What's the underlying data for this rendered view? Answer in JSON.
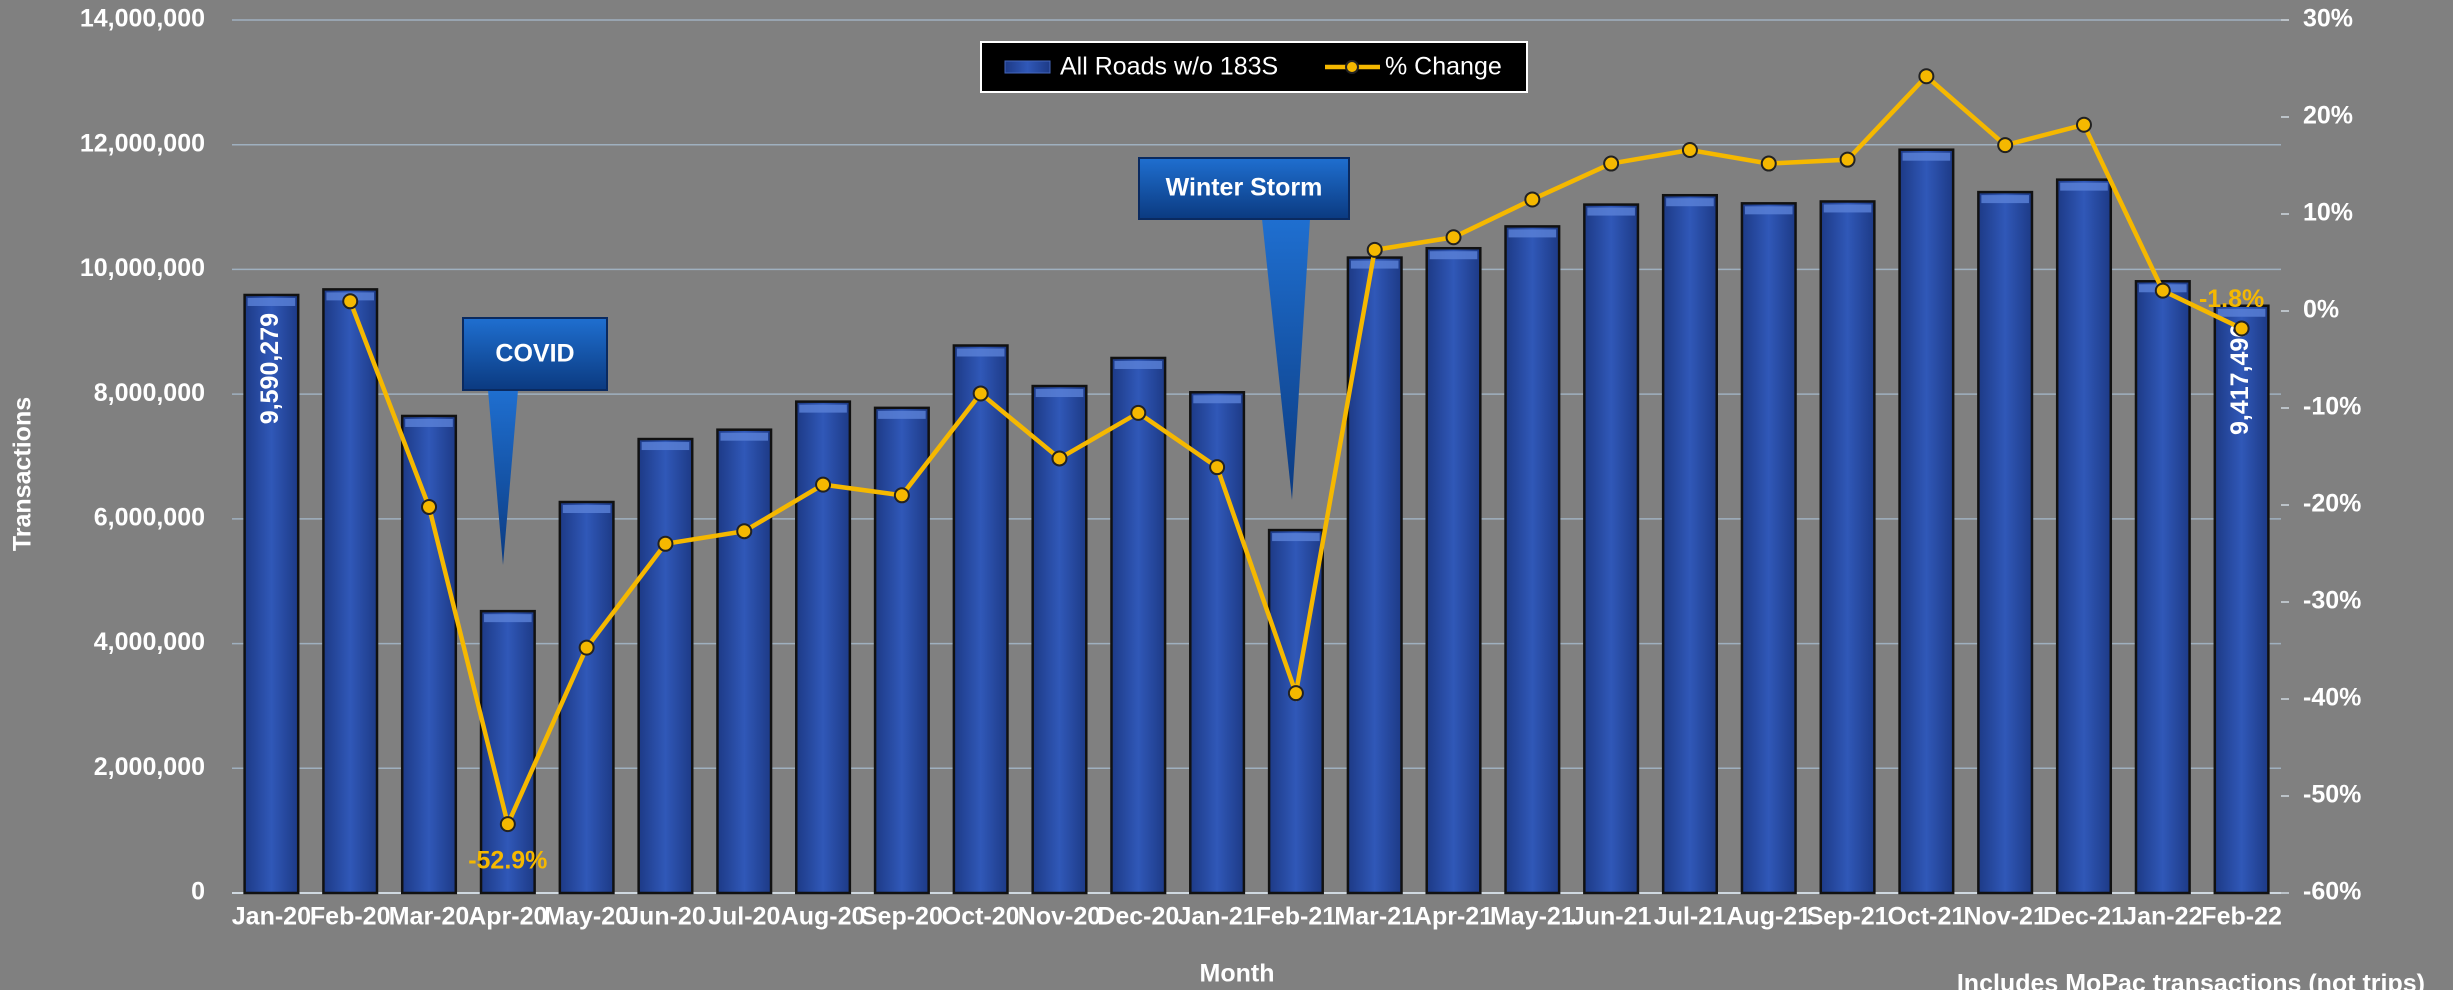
{
  "chart_data": {
    "type": "bar-line",
    "x_label": "Month",
    "y_label": "Transactions",
    "categories": [
      "Jan-20",
      "Feb-20",
      "Mar-20",
      "Apr-20",
      "May-20",
      "Jun-20",
      "Jul-20",
      "Aug-20",
      "Sep-20",
      "Oct-20",
      "Nov-20",
      "Dec-20",
      "Jan-21",
      "Feb-21",
      "Mar-21",
      "Apr-21",
      "May-21",
      "Jun-21",
      "Jul-21",
      "Aug-21",
      "Sep-21",
      "Oct-21",
      "Nov-21",
      "Dec-21",
      "Jan-22",
      "Feb-22"
    ],
    "series": [
      {
        "name": "All Roads w/o 183S",
        "type": "bar",
        "color": "#2a4fa8",
        "values": [
          9590279,
          9680000,
          7650000,
          4520000,
          6270000,
          7280000,
          7430000,
          7880000,
          7780000,
          8780000,
          8130000,
          8580000,
          8030000,
          5820000,
          10190000,
          10340000,
          10690000,
          11040000,
          11190000,
          11060000,
          11090000,
          11920000,
          11240000,
          11440000,
          9810000,
          9417496
        ],
        "value_labels": [
          "9,590,279",
          null,
          null,
          null,
          null,
          null,
          null,
          null,
          null,
          null,
          null,
          null,
          null,
          null,
          null,
          null,
          null,
          null,
          null,
          null,
          null,
          null,
          null,
          null,
          null,
          "9,417,496"
        ]
      },
      {
        "name": "% Change",
        "type": "line",
        "color": "#f5b800",
        "axis": "y2",
        "values": [
          null,
          1.0,
          -20.2,
          -52.9,
          -34.7,
          -24.0,
          -22.7,
          -17.9,
          -19.0,
          -8.5,
          -15.2,
          -10.5,
          -16.1,
          -39.4,
          6.3,
          7.6,
          11.5,
          15.2,
          16.6,
          15.2,
          15.6,
          24.2,
          17.1,
          19.2,
          2.1,
          -1.8
        ],
        "value_labels": [
          null,
          null,
          null,
          "-52.9%",
          null,
          null,
          null,
          null,
          null,
          null,
          null,
          null,
          null,
          null,
          null,
          null,
          null,
          null,
          null,
          null,
          null,
          null,
          null,
          null,
          null,
          "-1.8%"
        ]
      }
    ],
    "ylim": [
      0,
      14000000
    ],
    "yticks": [
      0,
      {
        "value": 2000000,
        "label": "2,000,000"
      },
      {
        "value": 4000000,
        "label": "4,000,000"
      },
      {
        "value": 6000000,
        "label": "6,000,000"
      },
      {
        "value": 8000000,
        "label": "8,000,000"
      },
      {
        "value": 10000000,
        "label": "10,000,000"
      },
      {
        "value": 12000000,
        "label": "12,000,000"
      },
      {
        "value": 14000000,
        "label": "14,000,000"
      }
    ],
    "y2lim": [
      -60,
      30
    ],
    "y2ticks": [
      {
        "value": -60,
        "label": "-60%"
      },
      {
        "value": -50,
        "label": "-50%"
      },
      {
        "value": -40,
        "label": "-40%"
      },
      {
        "value": -30,
        "label": "-30%"
      },
      {
        "value": -20,
        "label": "-20%"
      },
      {
        "value": -10,
        "label": "-10%"
      },
      {
        "value": 0,
        "label": "0%"
      },
      {
        "value": 10,
        "label": "10%"
      },
      {
        "value": 20,
        "label": "20%"
      },
      {
        "value": 30,
        "label": "30%"
      }
    ],
    "grid": true,
    "legend": "top",
    "annotations": [
      "COVID",
      "Winter Storm"
    ],
    "footnote": "Includes MoPac transactions (not trips)"
  }
}
